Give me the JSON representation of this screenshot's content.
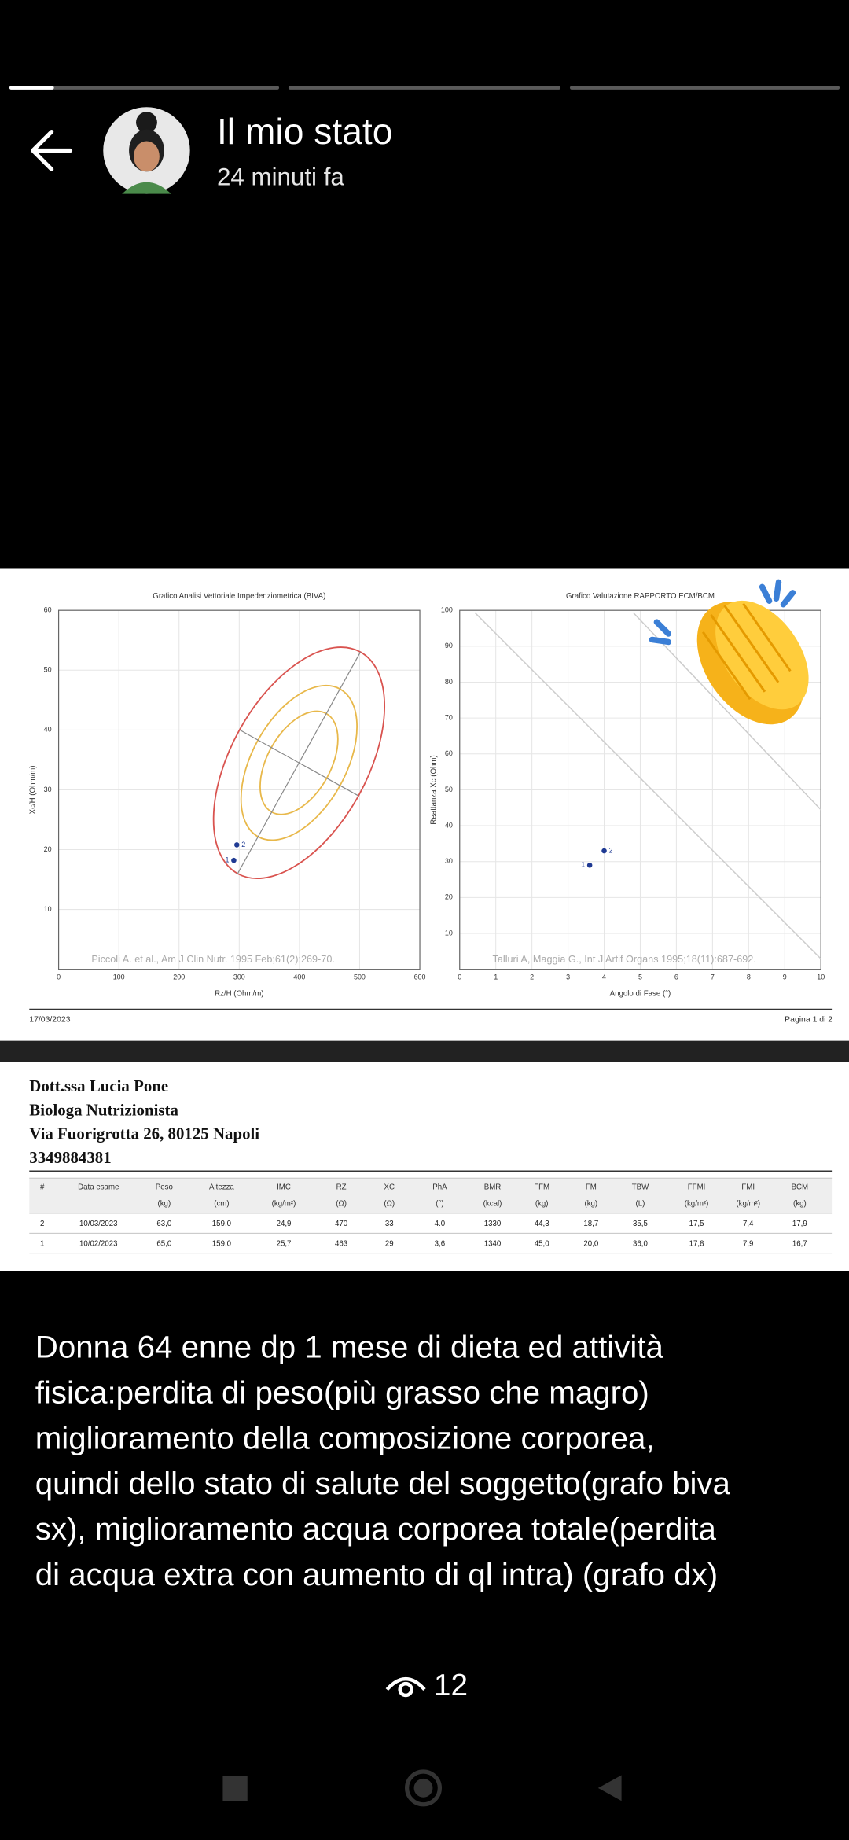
{
  "header": {
    "title": "Il mio stato",
    "subtitle": "24 minuti fa"
  },
  "report": {
    "biva_chart": {
      "title": "Grafico Analisi Vettoriale Impedenziometrica (BIVA)",
      "x_label": "Rz/H (Ohm/m)",
      "y_label": "Xc/H (Ohm/m)",
      "xlim": [
        0,
        600
      ],
      "ylim": [
        0,
        60
      ],
      "xticks": [
        0,
        100,
        200,
        300,
        400,
        500,
        600
      ],
      "yticks": [
        10,
        20,
        30,
        40,
        50,
        60
      ],
      "reference": "Piccoli A. et al., Am J Clin Nutr. 1995 Feb;61(2):269-70.",
      "points": [
        {
          "label": "1",
          "x": 291,
          "y": 18.2
        },
        {
          "label": "2",
          "x": 296,
          "y": 20.8
        }
      ]
    },
    "ratio_chart": {
      "title": "Grafico Valutazione RAPPORTO ECM/BCM",
      "x_label": "Angolo di Fase (°)",
      "y_label": "Reattanza Xc (Ohm)",
      "xlim": [
        0,
        10
      ],
      "ylim": [
        0,
        100
      ],
      "xticks": [
        0,
        1,
        2,
        3,
        4,
        5,
        6,
        7,
        8,
        9,
        10
      ],
      "yticks": [
        10,
        20,
        30,
        40,
        50,
        60,
        70,
        80,
        90,
        100
      ],
      "reference": "Talluri A, Maggia G., Int J Artif Organs 1995;18(11):687-692.",
      "points": [
        {
          "label": "1",
          "x": 3.6,
          "y": 29
        },
        {
          "label": "2",
          "x": 4.0,
          "y": 33
        }
      ]
    },
    "date": "17/03/2023",
    "page": "Pagina 1 di 2",
    "doctor": [
      "Dott.ssa Lucia Pone",
      "Biologa Nutrizionista",
      "Via Fuorigrotta 26, 80125 Napoli",
      "3349884381"
    ],
    "table": {
      "header": [
        {
          "name": "#"
        },
        {
          "name": "Data esame"
        },
        {
          "name": "Peso",
          "unit": "(kg)"
        },
        {
          "name": "Altezza",
          "unit": "(cm)"
        },
        {
          "name": "IMC",
          "unit": "(kg/m²)"
        },
        {
          "name": "RZ",
          "unit": "(Ω)"
        },
        {
          "name": "XC",
          "unit": "(Ω)"
        },
        {
          "name": "PhA",
          "unit": "(°)"
        },
        {
          "name": "BMR",
          "unit": "(kcal)"
        },
        {
          "name": "FFM",
          "unit": "(kg)"
        },
        {
          "name": "FM",
          "unit": "(kg)"
        },
        {
          "name": "TBW",
          "unit": "(L)"
        },
        {
          "name": "FFMI",
          "unit": "(kg/m²)"
        },
        {
          "name": "FMI",
          "unit": "(kg/m²)"
        },
        {
          "name": "BCM",
          "unit": "(kg)"
        }
      ],
      "rows": [
        [
          "2",
          "10/03/2023",
          "63,0",
          "159,0",
          "24,9",
          "470",
          "33",
          "4.0",
          "1330",
          "44,3",
          "18,7",
          "35,5",
          "17,5",
          "7,4",
          "17,9"
        ],
        [
          "1",
          "10/02/2023",
          "65,0",
          "159,0",
          "25,7",
          "463",
          "29",
          "3,6",
          "1340",
          "45,0",
          "20,0",
          "36,0",
          "17,8",
          "7,9",
          "16,7"
        ]
      ]
    }
  },
  "caption": [
    "Donna 64 enne dp 1 mese di dieta ed attività",
    "fisica:perdita di peso(più grasso che magro)",
    "miglioramento della composizione corporea,",
    "quindi dello stato di salute del soggetto(grafo biva",
    "sx), miglioramento acqua corporea totale(perdita",
    "di acqua extra con aumento di ql intra) (grafo dx)"
  ],
  "views": "12"
}
